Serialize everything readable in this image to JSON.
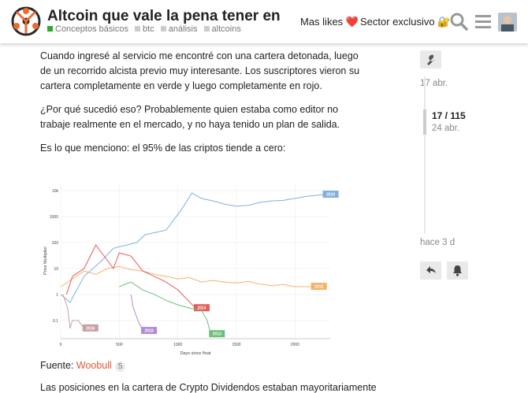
{
  "header": {
    "title": "Altcoin que vale la pena tener en cart…",
    "category": "Conceptos básicos",
    "tags": [
      "btc",
      "análisis",
      "altcoins"
    ],
    "link1": "Mas likes ❤️",
    "link2": "Sector exclusivo 🔐"
  },
  "post": {
    "paragraphs": [
      "Cuando ingresé al servicio me encontré con una cartera detonada, luego de un recorrido alcista previo muy interesante. Los suscriptores vieron su cartera completamente en verde y luego completamente en rojo.",
      "¿Por qué sucedió eso? Probablemente quien estaba como editor no trabaje realmente en el mercado, y no haya tenido un plan de salida.",
      "Es lo que menciono: el 95% de las criptos tiende a cero:"
    ],
    "fuente_label": "Fuente: ",
    "fuente_link": "Woobull",
    "fuente_count": "5",
    "tail": "Las posiciones en la cartera de Crypto Dividendos estaban mayoritariamente"
  },
  "timeline": {
    "date_top": "17 abr.",
    "counter": "17 / 115",
    "date_current": "24 abr.",
    "date_bottom": "hace 3 d"
  },
  "chart_data": {
    "type": "line",
    "xlabel": "Days since float",
    "ylabel": "Price Multiplier",
    "xlim": [
      0,
      2300
    ],
    "x_ticks": [
      "0",
      "500",
      "1000",
      "1500",
      "2000"
    ],
    "y_ticks": [
      "10k",
      "1000",
      "100",
      "10",
      "1",
      "0.1"
    ],
    "y_scale": "log",
    "series": [
      {
        "name": "2010",
        "color": "#7fb0dc",
        "x": [
          0,
          80,
          200,
          350,
          450,
          650,
          720,
          900,
          970,
          1000,
          1050,
          1120,
          1200,
          1300,
          1400,
          1500,
          1600,
          1700,
          1800,
          1900,
          2000,
          2100,
          2250
        ],
        "y": [
          1,
          0.5,
          5,
          20,
          60,
          100,
          200,
          300,
          800,
          1200,
          2500,
          8000,
          5000,
          4000,
          3000,
          2500,
          2700,
          3500,
          4000,
          4200,
          5000,
          6000,
          7000
        ]
      },
      {
        "name": "2012",
        "color": "#f5b26b",
        "x": [
          0,
          100,
          200,
          300,
          400,
          500,
          600,
          700,
          800,
          900,
          1000,
          1100,
          1200,
          1300,
          1400,
          1500,
          1600,
          1700,
          1800,
          1900,
          2000,
          2150
        ],
        "y": [
          2,
          4,
          8,
          6,
          10,
          12,
          9,
          8,
          6,
          5,
          4,
          4.5,
          3,
          3.5,
          3,
          2.8,
          3.2,
          2.5,
          2.2,
          2.4,
          2,
          2
        ]
      },
      {
        "name": "2014",
        "color": "#e65a5a",
        "x": [
          50,
          100,
          200,
          300,
          400,
          450,
          500,
          600,
          700,
          800,
          900,
          1000,
          1150
        ],
        "y": [
          1,
          5,
          10,
          80,
          20,
          10,
          40,
          30,
          8,
          5,
          3,
          1.5,
          0.3
        ]
      },
      {
        "name": "2016",
        "color": "#c9a0a0",
        "x": [
          20,
          60,
          80,
          100,
          150,
          200
        ],
        "y": [
          1,
          0.3,
          0.05,
          0.1,
          0.1,
          0.05
        ]
      },
      {
        "name": "2018",
        "color": "#b28ad8",
        "x": [
          600,
          620,
          660,
          700
        ],
        "y": [
          1,
          0.3,
          0.1,
          0.04
        ]
      },
      {
        "name": "2013",
        "color": "#6bbf7a",
        "x": [
          500,
          600,
          700,
          800,
          900,
          1000,
          1100,
          1200,
          1250,
          1280
        ],
        "y": [
          2,
          3,
          1.5,
          1,
          0.6,
          0.4,
          0.3,
          0.25,
          0.1,
          0.03
        ]
      }
    ]
  }
}
